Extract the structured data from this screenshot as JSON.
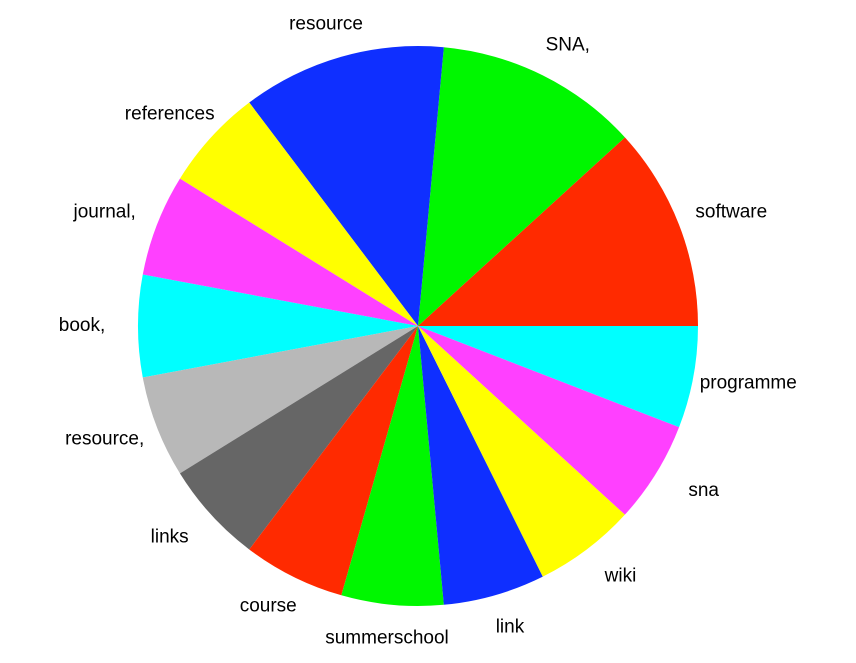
{
  "chart_data": {
    "type": "pie",
    "categories": [
      "software",
      "SNA,",
      "resource",
      "references",
      "journal,",
      "book,",
      "resource,",
      "links",
      "course",
      "summerschool",
      "link",
      "wiki",
      "sna",
      "programme"
    ],
    "values": [
      2,
      2,
      2,
      1,
      1,
      1,
      1,
      1,
      1,
      1,
      1,
      1,
      1,
      1
    ],
    "colors": [
      "#ff2a00",
      "#00f700",
      "#0f2fff",
      "#ffff00",
      "#ff40ff",
      "#00ffff",
      "#b8b8b8",
      "#666666",
      "#ff2a00",
      "#00f700",
      "#0f2fff",
      "#ffff00",
      "#ff40ff",
      "#00ffff"
    ]
  }
}
